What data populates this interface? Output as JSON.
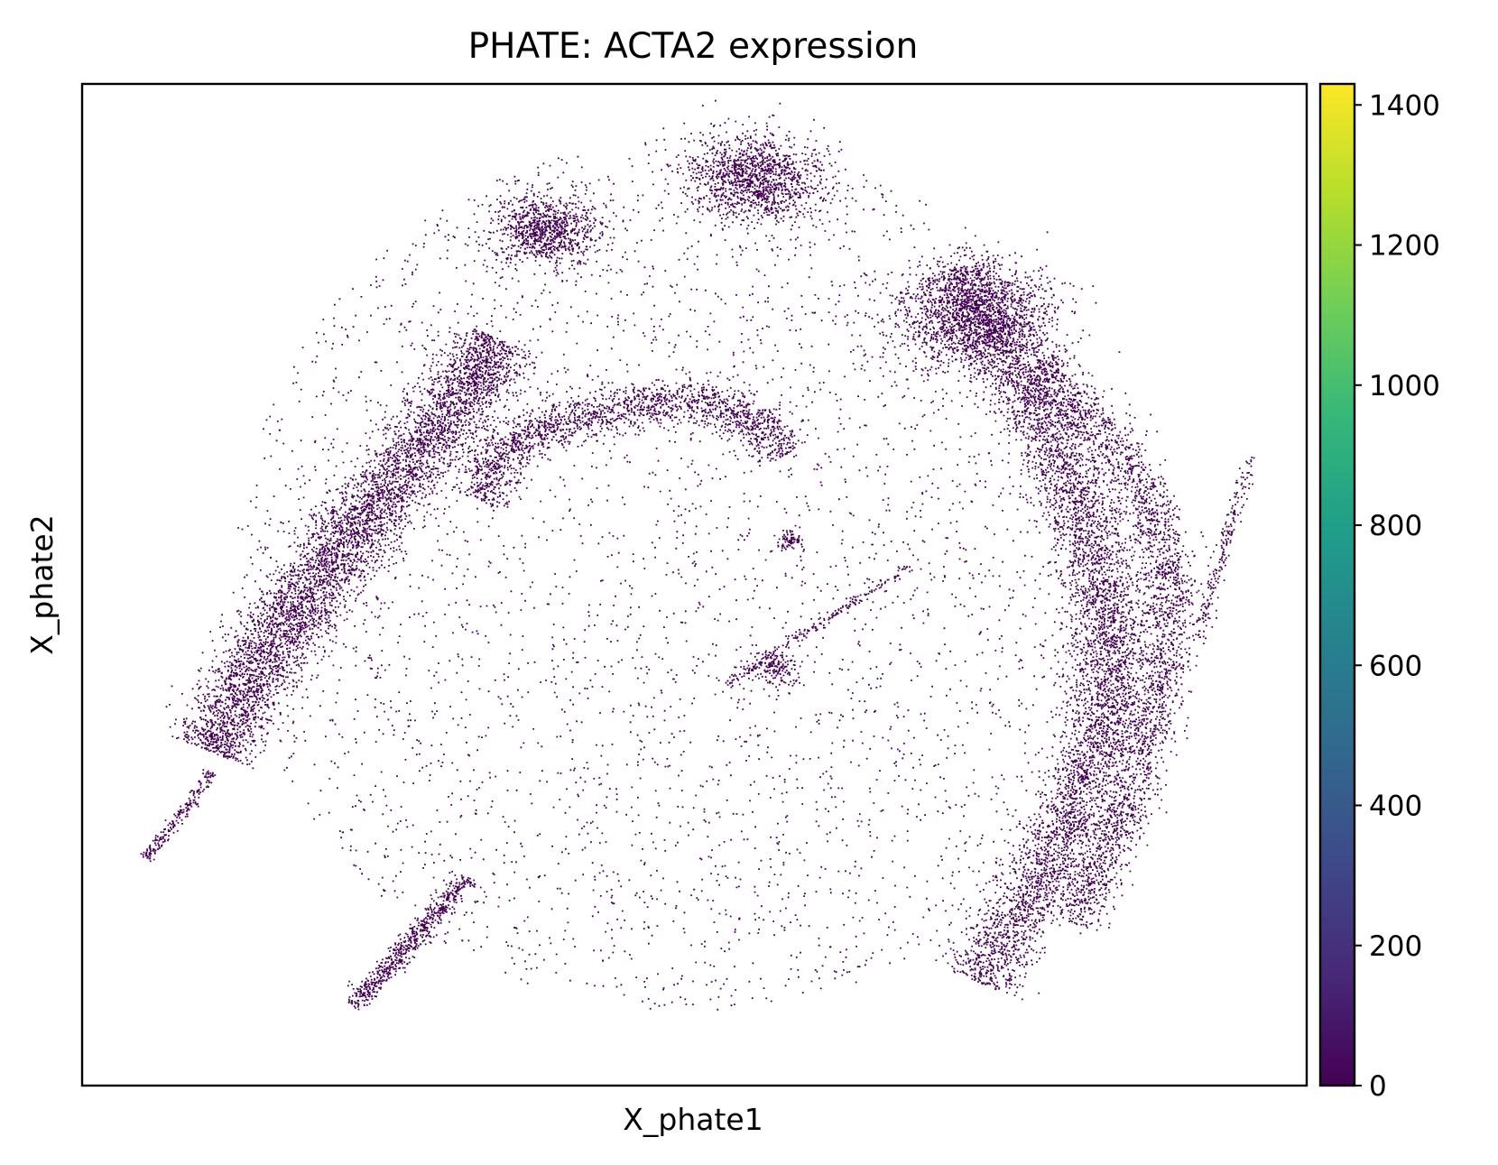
{
  "chart_data": {
    "type": "scatter",
    "title": "PHATE: ACTA2 expression",
    "xlabel": "X_phate1",
    "ylabel": "X_phate2",
    "x_ticks": [],
    "y_ticks": [],
    "xlim": [
      0,
      100
    ],
    "ylim": [
      0,
      100
    ],
    "grid": false,
    "point_color": "#440154",
    "colorbar": {
      "colormap": "viridis",
      "range": [
        0,
        1430
      ],
      "ticks": [
        0,
        200,
        400,
        600,
        800,
        1000,
        1200,
        1400
      ],
      "tick_labels": [
        "0",
        "200",
        "400",
        "600",
        "800",
        "1000",
        "1200",
        "1400"
      ],
      "stops": [
        "#440154",
        "#482878",
        "#3e4989",
        "#31688e",
        "#26828e",
        "#1f9e89",
        "#35b779",
        "#6ece58",
        "#b5de2b",
        "#fde725"
      ]
    },
    "structures": [
      {
        "kind": "blob",
        "x": 37.7,
        "y": 85.5,
        "spread": 2.2,
        "weight": 0.035
      },
      {
        "kind": "blob",
        "x": 55.0,
        "y": 90.6,
        "spread": 2.8,
        "weight": 0.05
      },
      {
        "kind": "blob",
        "x": 73.1,
        "y": 76.8,
        "spread": 3.4,
        "weight": 0.06
      },
      {
        "kind": "blob",
        "x": 56.5,
        "y": 41.7,
        "spread": 1.0,
        "weight": 0.006
      },
      {
        "kind": "blob",
        "x": 57.6,
        "y": 54.4,
        "spread": 0.6,
        "weight": 0.003
      },
      {
        "kind": "band",
        "points": [
          [
            10.2,
            33.5
          ],
          [
            14.0,
            41.5
          ],
          [
            18.0,
            48.6
          ],
          [
            22.5,
            55.5
          ],
          [
            26.5,
            61.7
          ],
          [
            30.5,
            68.0
          ],
          [
            34.0,
            74.7
          ]
        ],
        "width": 3.2,
        "weight": 0.2
      },
      {
        "kind": "band",
        "points": [
          [
            32.0,
            58.6
          ],
          [
            35.0,
            64.7
          ],
          [
            40.0,
            66.6
          ],
          [
            45.0,
            68.0
          ],
          [
            50.0,
            68.5
          ],
          [
            54.5,
            67.1
          ],
          [
            57.5,
            63.1
          ]
        ],
        "width": 2.1,
        "weight": 0.07
      },
      {
        "kind": "band",
        "points": [
          [
            71.0,
            81.6
          ],
          [
            76.0,
            71.9
          ],
          [
            80.5,
            61.2
          ],
          [
            83.7,
            48.6
          ],
          [
            83.5,
            36.0
          ],
          [
            80.0,
            24.5
          ],
          [
            73.0,
            10.4
          ]
        ],
        "width": 2.9,
        "weight": 0.21
      },
      {
        "kind": "band",
        "points": [
          [
            78.0,
            71.9
          ],
          [
            85.5,
            62.2
          ],
          [
            89.0,
            51.3
          ],
          [
            88.0,
            40.1
          ],
          [
            85.5,
            28.7
          ],
          [
            81.0,
            16.2
          ]
        ],
        "width": 2.2,
        "weight": 0.1
      },
      {
        "kind": "band",
        "points": [
          [
            22.0,
            8.0
          ],
          [
            25.5,
            12.6
          ],
          [
            29.0,
            17.6
          ],
          [
            31.5,
            20.9
          ]
        ],
        "width": 0.9,
        "weight": 0.025
      },
      {
        "kind": "band",
        "points": [
          [
            5.0,
            22.8
          ],
          [
            8.0,
            27.1
          ],
          [
            10.5,
            31.4
          ]
        ],
        "width": 0.5,
        "weight": 0.008
      },
      {
        "kind": "band",
        "points": [
          [
            91.0,
            44.2
          ],
          [
            93.5,
            55.6
          ],
          [
            95.5,
            63.1
          ]
        ],
        "width": 0.6,
        "weight": 0.008
      },
      {
        "kind": "band",
        "points": [
          [
            52.5,
            40.1
          ],
          [
            60.0,
            46.1
          ],
          [
            67.5,
            51.8
          ]
        ],
        "width": 0.5,
        "weight": 0.008
      }
    ],
    "halo": {
      "center_x": 49.6,
      "center_y": 51.0,
      "radius_x": 37.2,
      "radius_y": 43.6,
      "weight": 0.15
    }
  }
}
